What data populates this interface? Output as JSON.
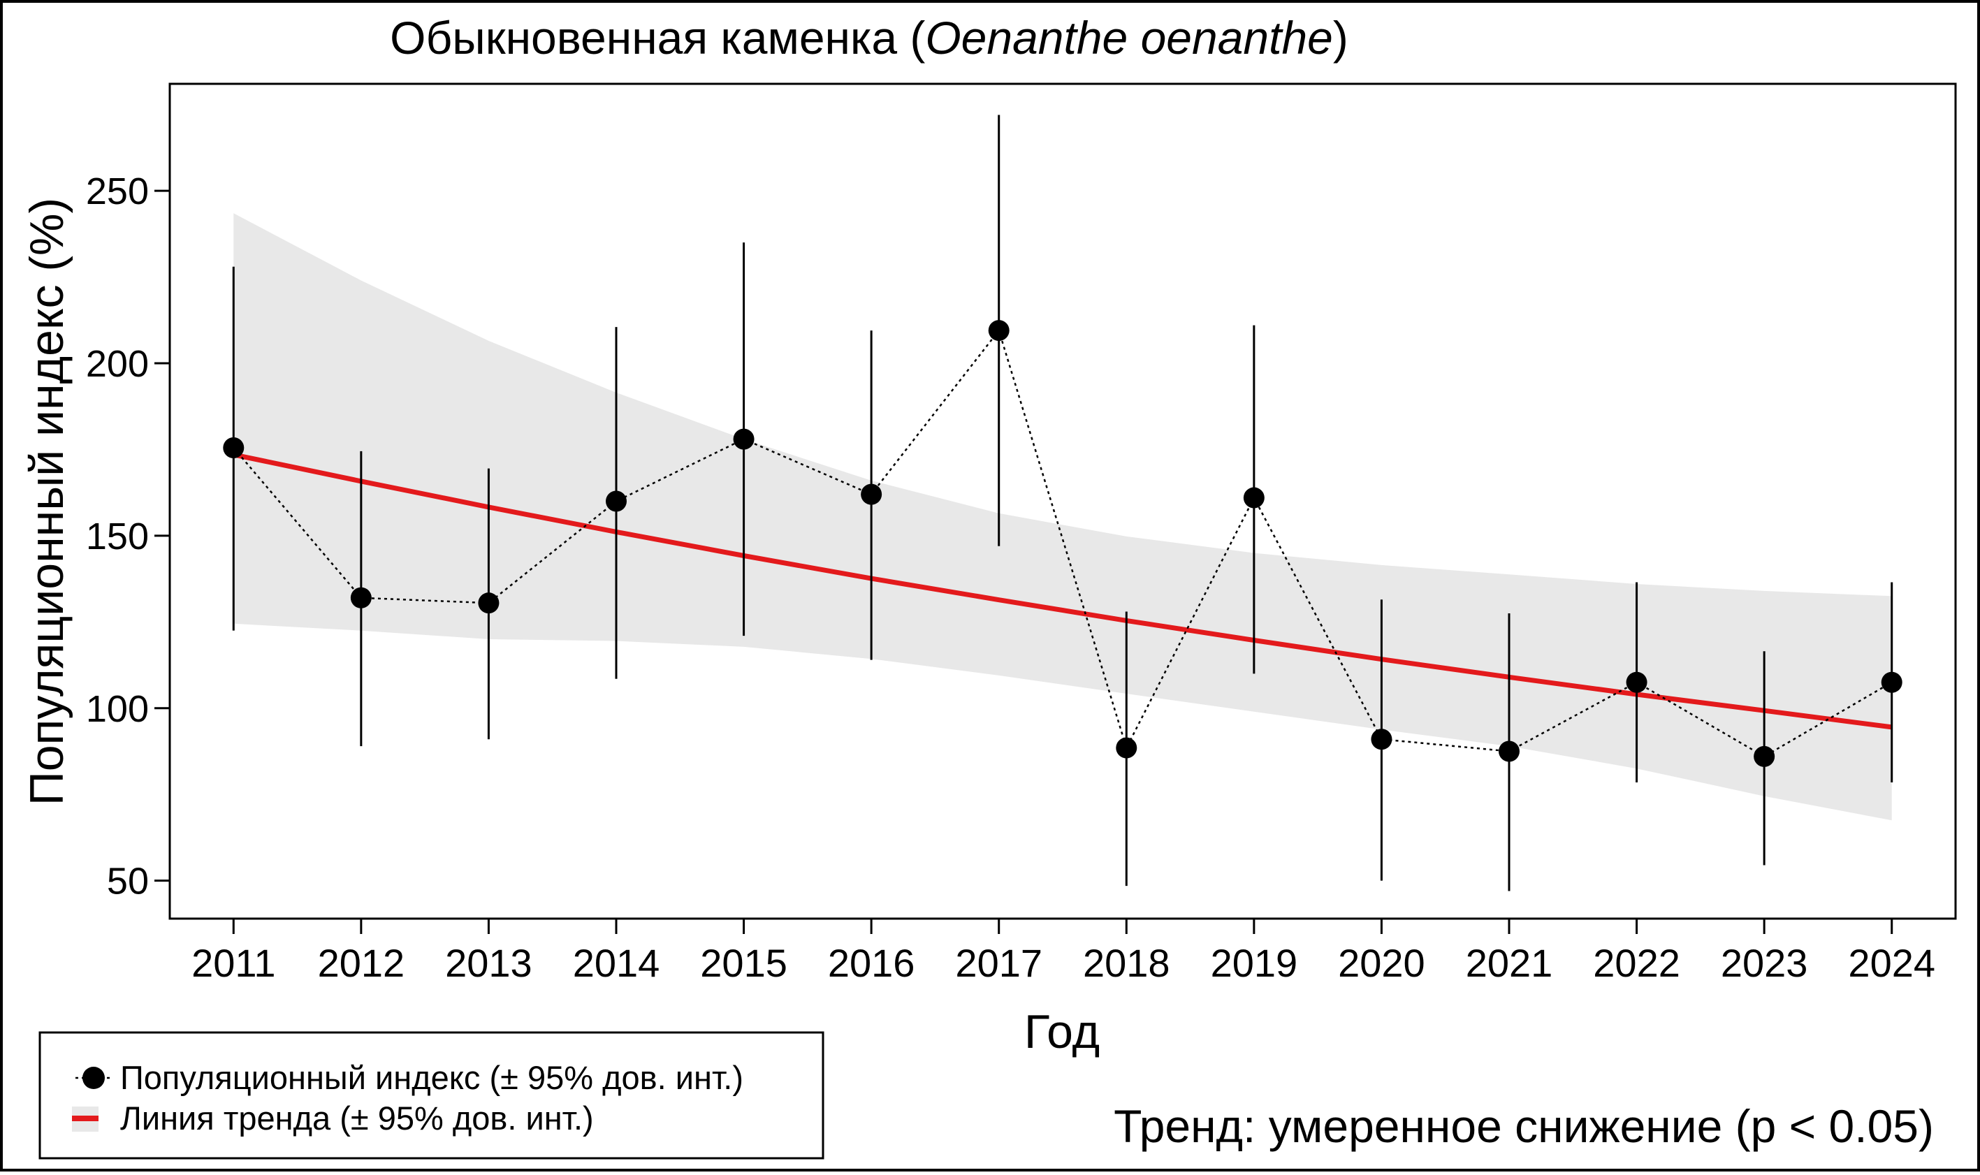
{
  "chart_data": {
    "type": "line",
    "title": {
      "main": "Обыкновенная каменка (",
      "italic": "Oenanthe oenanthe",
      "close": ")"
    },
    "xlabel": "Год",
    "ylabel": "Популяционный индекс (%)",
    "x": [
      2011,
      2012,
      2013,
      2014,
      2015,
      2016,
      2017,
      2018,
      2019,
      2020,
      2021,
      2022,
      2023,
      2024
    ],
    "xlim": [
      2010.5,
      2024.5
    ],
    "ylim": [
      39,
      281
    ],
    "yticks": [
      50,
      100,
      150,
      200,
      250
    ],
    "xticks": [
      2011,
      2012,
      2013,
      2014,
      2015,
      2016,
      2017,
      2018,
      2019,
      2020,
      2021,
      2022,
      2023,
      2024
    ],
    "grid": false,
    "series": [
      {
        "name": "Популяционный индекс (± 95% дов. инт.)",
        "style": "points-dotted",
        "color": "#000000",
        "values": [
          175.5,
          132,
          130.5,
          160,
          178,
          162,
          209.5,
          88.5,
          161,
          91,
          87.5,
          107.5,
          86,
          107.5
        ],
        "ci_lower": [
          122.5,
          89,
          91,
          108.5,
          121,
          114,
          147,
          48.5,
          110,
          50,
          47,
          78.5,
          54.5,
          78.5
        ],
        "ci_upper": [
          228,
          174.5,
          169.5,
          210.5,
          235,
          209.5,
          272,
          128,
          211,
          131.5,
          127.5,
          136.5,
          116.5,
          136.5
        ]
      },
      {
        "name": "Линия тренда (± 95% дов. инт.)",
        "style": "trend-line-band",
        "color": "#e31a1c",
        "band_color": "#e8e8e8",
        "values": [
          173.5,
          165.8,
          158.3,
          151.1,
          144.2,
          137.6,
          131.4,
          125.4,
          119.7,
          114.2,
          109.0,
          104.0,
          99.3,
          94.5
        ],
        "ci_lower": [
          124.5,
          122.5,
          120.0,
          119.5,
          117.8,
          114.3,
          109.5,
          104.2,
          99.0,
          93.8,
          89.0,
          82.5,
          74.5,
          67.5
        ],
        "ci_upper": [
          243.5,
          224.0,
          206.5,
          191.5,
          178.0,
          166.0,
          156.5,
          149.8,
          145.0,
          141.5,
          138.8,
          136.0,
          134.0,
          132.5
        ]
      }
    ],
    "legend": {
      "position": "bottom-left",
      "entries": [
        "Популяционный индекс (± 95% дов. инт.)",
        "Линия тренда (± 95% дов. инт.)"
      ]
    },
    "annotation": {
      "text": "Тренд: умеренное снижение (p < 0.05)",
      "color": "#e31a1c"
    }
  }
}
